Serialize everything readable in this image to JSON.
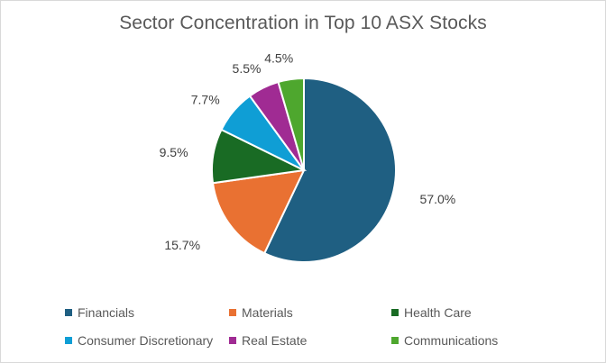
{
  "chart_data": {
    "type": "pie",
    "title": "Sector Concentration in Top 10 ASX Stocks",
    "categories": [
      "Financials",
      "Materials",
      "Health Care",
      "Consumer Discretionary",
      "Real Estate",
      "Communications"
    ],
    "values": [
      57.0,
      15.7,
      9.5,
      7.7,
      5.5,
      4.5
    ],
    "labels": [
      "57.0%",
      "15.7%",
      "9.5%",
      "7.7%",
      "5.5%",
      "4.5%"
    ],
    "colors": [
      "#1f5f82",
      "#e97132",
      "#196b24",
      "#0f9ed5",
      "#a02b93",
      "#4ea72e"
    ],
    "legend_position": "bottom",
    "start_angle": "12 o'clock",
    "direction": "clockwise"
  }
}
